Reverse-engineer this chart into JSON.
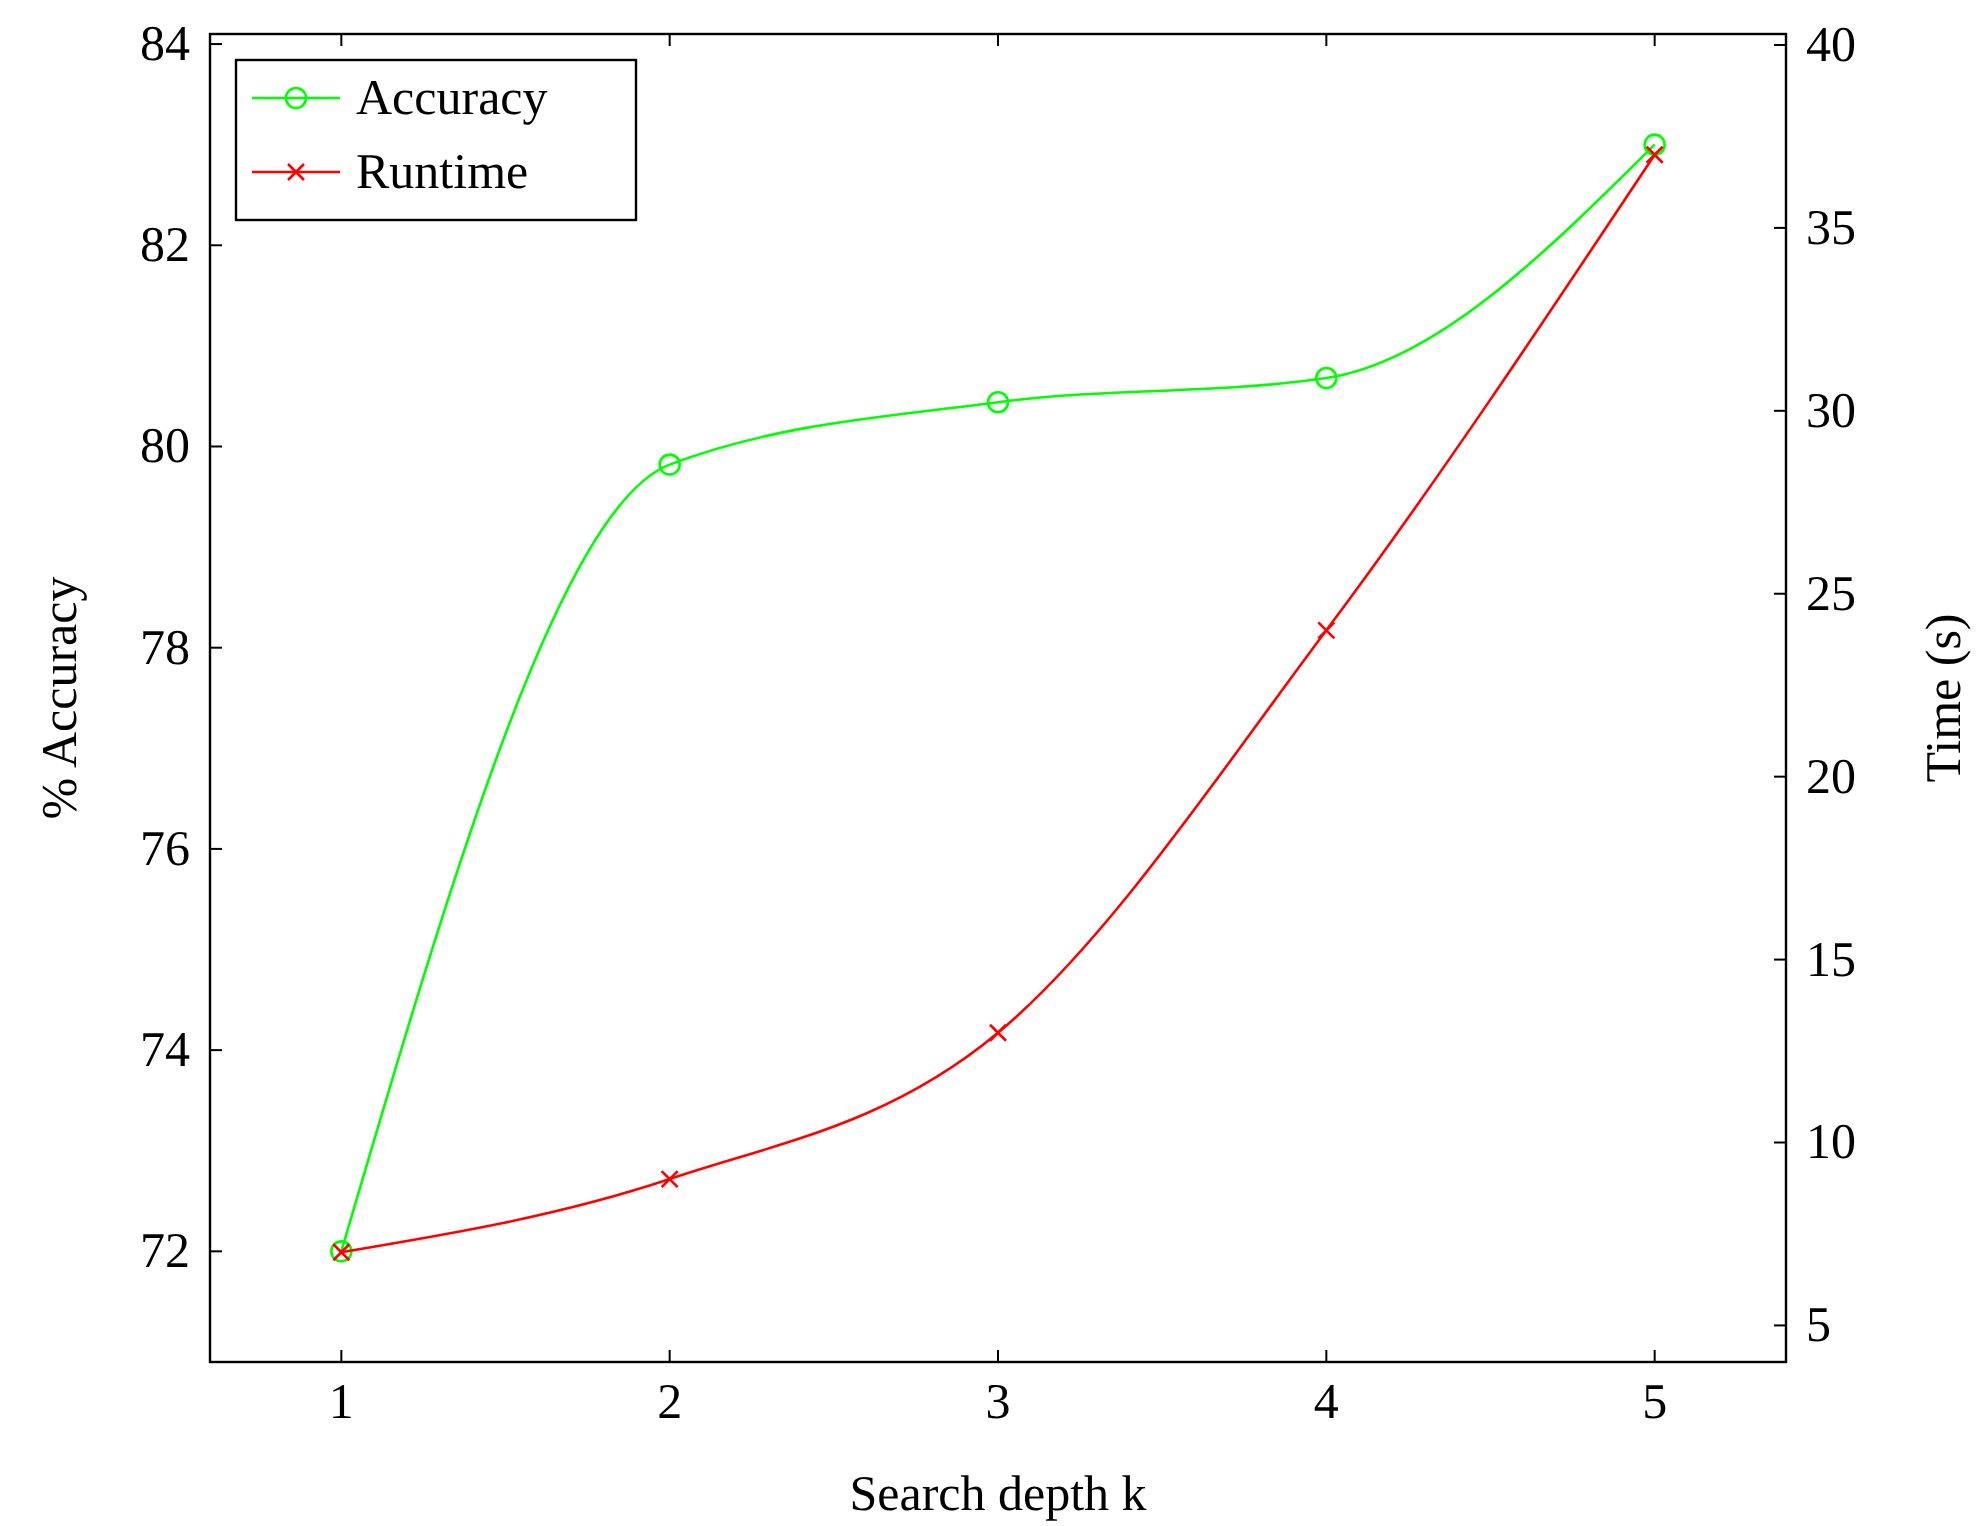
{
  "chart_data": {
    "type": "line",
    "xlabel": "Search depth k",
    "ylabel": "% Accuracy",
    "y2label": "Time (s)",
    "x": [
      1,
      2,
      3,
      4,
      5
    ],
    "series": [
      {
        "name": "Accuracy",
        "color": "#00ff00",
        "marker": "circle",
        "values": [
          72,
          79.82,
          80.44,
          80.68,
          83
        ]
      },
      {
        "name": "Runtime",
        "color": "#ff0000",
        "marker": "cross",
        "axis": "y2",
        "values": [
          7,
          9,
          13,
          24,
          37
        ]
      }
    ],
    "xlim": [
      0.6,
      5.4
    ],
    "xticks": [
      1,
      2,
      3,
      4,
      5
    ],
    "ylim": [
      70.9,
      84.1
    ],
    "yticks": [
      72,
      74,
      76,
      78,
      80,
      82,
      84
    ],
    "y2lim": [
      4,
      40.3
    ],
    "y2ticks": [
      5,
      10,
      15,
      20,
      25,
      30,
      35,
      40
    ],
    "legend": "top left"
  }
}
